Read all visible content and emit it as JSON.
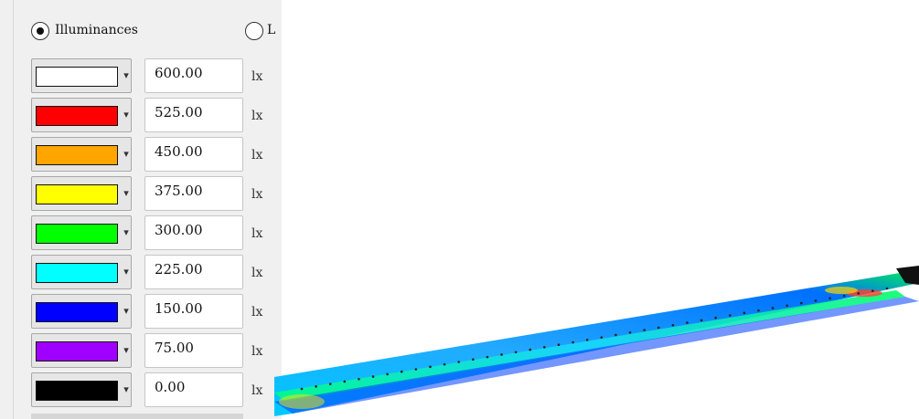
{
  "mode_radio": {
    "illuminances": {
      "label": "Illuminances",
      "selected": true
    },
    "second": {
      "label": "L",
      "selected": false
    }
  },
  "legend": [
    {
      "color": "#ffffff",
      "value": "600.00",
      "unit": "lx"
    },
    {
      "color": "#ff0000",
      "value": "525.00",
      "unit": "lx"
    },
    {
      "color": "#ffa500",
      "value": "450.00",
      "unit": "lx"
    },
    {
      "color": "#ffff00",
      "value": "375.00",
      "unit": "lx"
    },
    {
      "color": "#00ff00",
      "value": "300.00",
      "unit": "lx"
    },
    {
      "color": "#00ffff",
      "value": "225.00",
      "unit": "lx"
    },
    {
      "color": "#0000ff",
      "value": "150.00",
      "unit": "lx"
    },
    {
      "color": "#a000ff",
      "value": "75.00",
      "unit": "lx"
    },
    {
      "color": "#000000",
      "value": "0.00",
      "unit": "lx"
    }
  ],
  "view": {
    "floor_colors": [
      "#00c8ff",
      "#22aaff",
      "#0070ff",
      "#00e860",
      "#ffd200",
      "#ff3c28"
    ]
  }
}
